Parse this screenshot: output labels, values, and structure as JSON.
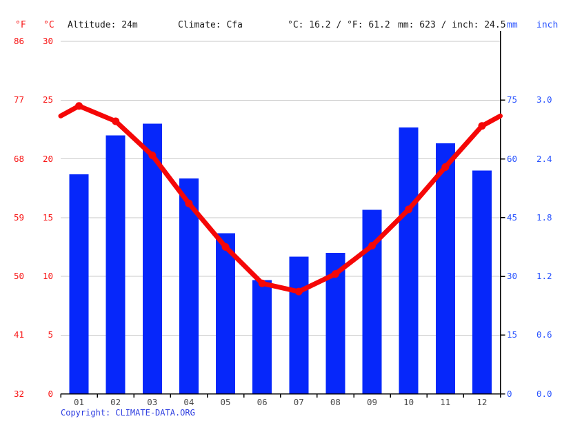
{
  "header": {
    "f_unit": "°F",
    "c_unit": "°C",
    "altitude": "Altitude: 24m",
    "climate": "Climate: Cfa",
    "temperature_summary": "°C: 16.2 / °F: 61.2",
    "precipitation_summary": "mm: 623 / inch: 24.5",
    "mm_unit": "mm",
    "inch_unit": "inch"
  },
  "footer": {
    "copyright_label": "Copyright:",
    "copyright_link": "CLIMATE-DATA.ORG"
  },
  "colors": {
    "bar_blue": "#0627fa",
    "line_red": "#f50707",
    "red_text": "#f81414",
    "blue_text": "#2953ff",
    "month_text": "#4a4a4a",
    "grid_gray": "#c9c9c9",
    "axis_black": "#000000",
    "copyright_blue": "#2c3ce0"
  },
  "chart_data": {
    "type": "bar",
    "subtype": "climograph: precipitation bars + temperature line",
    "categories": [
      "01",
      "02",
      "03",
      "04",
      "05",
      "06",
      "07",
      "08",
      "09",
      "10",
      "11",
      "12"
    ],
    "series": [
      {
        "name": "precipitation_mm",
        "type": "bar",
        "values": [
          56,
          66,
          69,
          55,
          41,
          29,
          35,
          36,
          47,
          68,
          64,
          57
        ]
      },
      {
        "name": "average_temperature_c",
        "type": "line",
        "values": [
          24.5,
          23.2,
          20.3,
          16.2,
          12.5,
          9.4,
          8.7,
          10.2,
          12.6,
          15.7,
          19.3,
          22.8
        ]
      }
    ],
    "line_edge_value_c": 23.65,
    "axes": {
      "left_fahrenheit_ticks": [
        86,
        77,
        68,
        59,
        50,
        41,
        32
      ],
      "left_celsius_ticks": [
        30,
        25,
        20,
        15,
        10,
        5,
        0
      ],
      "right_mm_ticks": [
        75,
        60,
        45,
        30,
        15,
        0
      ],
      "right_inch_ticks": [
        "3.0",
        "2.4",
        "1.8",
        "1.2",
        "0.6",
        "0.0"
      ],
      "celsius_range": [
        0,
        30
      ],
      "mm_range": [
        0,
        90
      ],
      "grid": true,
      "legend": "none"
    }
  }
}
